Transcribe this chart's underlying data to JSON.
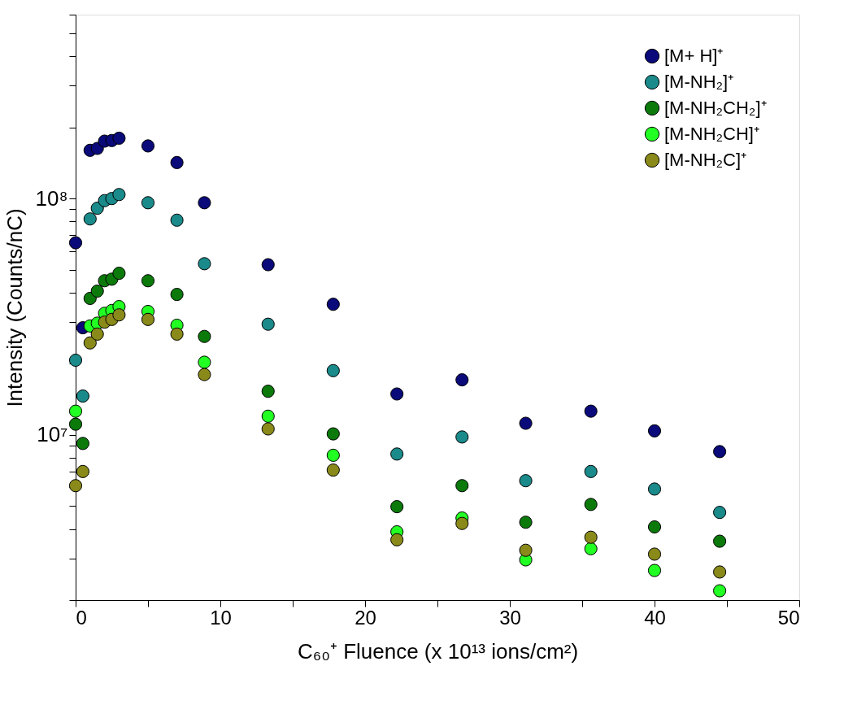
{
  "chart_data": {
    "type": "scatter",
    "xlabel": "C₆₀⁺ Fluence (x 10¹³ ions/cm²)",
    "ylabel": "Intensity (Counts/nC)",
    "x": [
      0,
      0.5,
      1,
      1.5,
      2,
      2.5,
      3,
      5,
      7,
      8.9,
      13.3,
      17.8,
      22.2,
      26.7,
      31.1,
      35.6,
      40,
      44.5
    ],
    "series": [
      {
        "name": "[M+ H]⁺",
        "color": "#0a0a7a",
        "values": [
          65000000.0,
          28400000.0,
          160000000.0,
          163000000.0,
          175000000.0,
          176000000.0,
          180000000.0,
          167000000.0,
          142000000.0,
          96000000.0,
          52500000.0,
          35700000.0,
          14900000.0,
          17100000.0,
          11200000.0,
          12600000.0,
          10400000.0,
          8500000.0
        ]
      },
      {
        "name": "[M-NH₂]⁺",
        "color": "#1a8a8a",
        "values": [
          20700000.0,
          14600000.0,
          82000000.0,
          91000000.0,
          98000000.0,
          100000000.0,
          104000000.0,
          96000000.0,
          81000000.0,
          53000000.0,
          29400000.0,
          18700000.0,
          8300000.0,
          9800000.0,
          6400000.0,
          7000000.0,
          5900000.0,
          4700000.0
        ]
      },
      {
        "name": "[M-NH₂CH₂]⁺",
        "color": "#0b7a0b",
        "values": [
          11100000.0,
          9200000.0,
          37800000.0,
          40600000.0,
          44900000.0,
          45600000.0,
          48300000.0,
          44900000.0,
          39300000.0,
          26100000.0,
          15300000.0,
          10100000.0,
          4970000.0,
          6100000.0,
          4270000.0,
          5080000.0,
          4080000.0,
          3550000.0
        ]
      },
      {
        "name": "[M-NH₂CH]⁺",
        "color": "#22ff22",
        "values": [
          12600000.0,
          null,
          28900000.0,
          29700000.0,
          32700000.0,
          33600000.0,
          34900000.0,
          33300000.0,
          29100000.0,
          20300000.0,
          12000000.0,
          8200000.0,
          3890000.0,
          4450000.0,
          2960000.0,
          3300000.0,
          2670000.0,
          2190000.0
        ]
      },
      {
        "name": "[M-NH₂C]⁺",
        "color": "#8a8a1a",
        "values": [
          6100000.0,
          7000000.0,
          24500000.0,
          26700000.0,
          30000000.0,
          30800000.0,
          32200000.0,
          30800000.0,
          26700000.0,
          18000000.0,
          10600000.0,
          7100000.0,
          3600000.0,
          4220000.0,
          3250000.0,
          3690000.0,
          3130000.0,
          2630000.0
        ]
      }
    ],
    "xlim": [
      0,
      50
    ],
    "xticks": [
      0,
      {
        "value": 5,
        "label": null
      },
      10,
      {
        "value": 15,
        "label": null
      },
      20,
      {
        "value": 25,
        "label": null
      },
      30,
      {
        "value": 35,
        "label": null
      },
      40,
      {
        "value": 45,
        "label": null
      },
      50
    ],
    "ylim": [
      2000000.0,
      600000000.0
    ],
    "log": true,
    "yticks": [
      {
        "value": 2000000.0,
        "label": null
      },
      {
        "value": 3000000.0,
        "label": null
      },
      {
        "value": 4000000.0,
        "label": null
      },
      {
        "value": 5000000.0,
        "label": null
      },
      {
        "value": 6000000.0,
        "label": null
      },
      {
        "value": 7000000.0,
        "label": null
      },
      {
        "value": 8000000.0,
        "label": null
      },
      {
        "value": 9000000.0,
        "label": null
      },
      {
        "value": 10000000.0,
        "label": "10⁷"
      },
      {
        "value": 20000000.0,
        "label": null
      },
      {
        "value": 30000000.0,
        "label": null
      },
      {
        "value": 40000000.0,
        "label": null
      },
      {
        "value": 50000000.0,
        "label": null
      },
      {
        "value": 60000000.0,
        "label": null
      },
      {
        "value": 70000000.0,
        "label": null
      },
      {
        "value": 80000000.0,
        "label": null
      },
      {
        "value": 90000000.0,
        "label": null
      },
      {
        "value": 100000000.0,
        "label": "10⁸"
      },
      {
        "value": 200000000.0,
        "label": null
      },
      {
        "value": 300000000.0,
        "label": null
      },
      {
        "value": 400000000.0,
        "label": null
      },
      {
        "value": 500000000.0,
        "label": null
      },
      {
        "value": 600000000.0,
        "label": null
      }
    ],
    "grid": false,
    "legend": "top right",
    "marker": "circle"
  }
}
